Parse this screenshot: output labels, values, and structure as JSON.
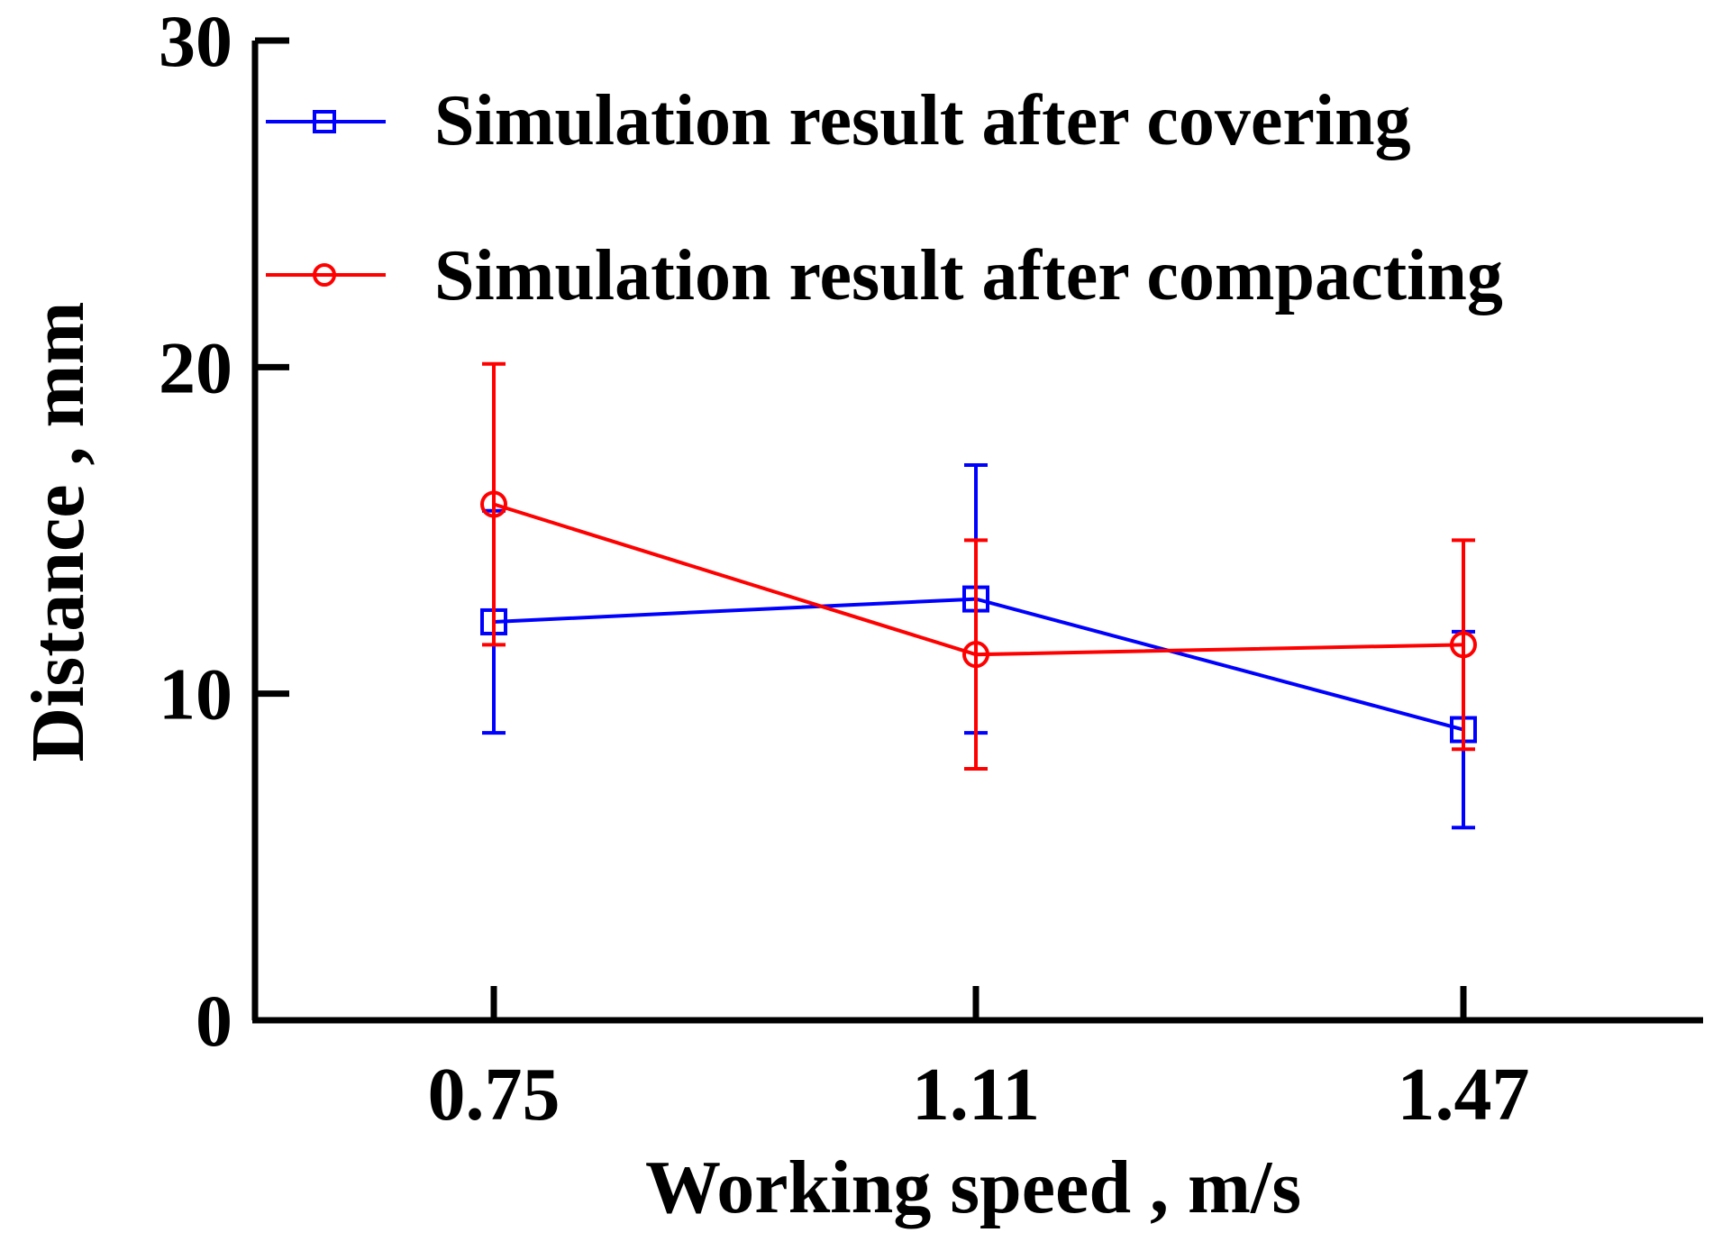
{
  "chart_data": {
    "type": "line",
    "title": "",
    "xlabel": "Working speed , m/s",
    "ylabel": "Distance , mm",
    "categories": [
      "0.75",
      "1.11",
      "1.47"
    ],
    "ylim": [
      0,
      30
    ],
    "yticks": [
      0,
      10,
      20,
      30
    ],
    "grid": false,
    "legend_position": "top-left",
    "series": [
      {
        "name": "Simulation result after covering",
        "color": "#0000ff",
        "marker": "square",
        "values": [
          12.2,
          12.9,
          8.9
        ],
        "error": [
          3.4,
          4.1,
          3.0
        ]
      },
      {
        "name": "Simulation result after compacting",
        "color": "#ff0000",
        "marker": "circle",
        "values": [
          15.8,
          11.2,
          11.5
        ],
        "error": [
          4.3,
          3.5,
          3.2
        ]
      }
    ]
  }
}
